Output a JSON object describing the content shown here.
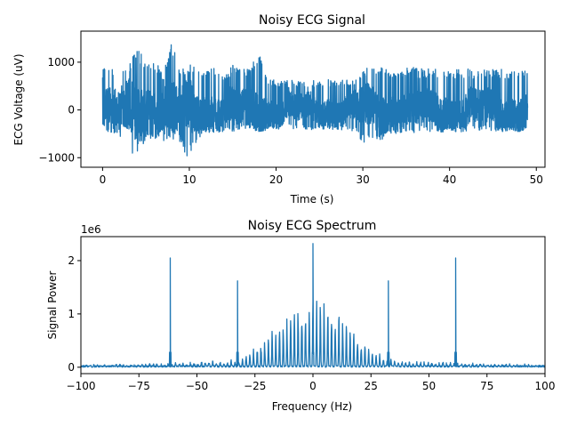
{
  "chart_data": [
    {
      "type": "line",
      "title": "Noisy ECG Signal",
      "xlabel": "Time (s)",
      "ylabel": "ECG Voltage (uV)",
      "xlim": [
        -2.5,
        51
      ],
      "ylim": [
        -1200,
        1650
      ],
      "xticks": [
        0,
        10,
        20,
        30,
        40,
        50
      ],
      "xtick_labels": [
        "0",
        "10",
        "20",
        "30",
        "40",
        "50"
      ],
      "yticks": [
        -1000,
        0,
        1000
      ],
      "ytick_labels": [
        "−1000",
        "0",
        "1000"
      ],
      "color": "#1f77b4",
      "series": [
        {
          "x": [
            0,
            2,
            3,
            4,
            5,
            6,
            7,
            8,
            9,
            10,
            11,
            12,
            13,
            14,
            15,
            16,
            17,
            18,
            19,
            20,
            21,
            22,
            23,
            24,
            25,
            26,
            27,
            28,
            29,
            30,
            31,
            32,
            33,
            34,
            35,
            36,
            37,
            38,
            39,
            40,
            41,
            42,
            43,
            44,
            45,
            46,
            47,
            48,
            49
          ],
          "y_max": [
            900,
            850,
            1000,
            1380,
            1000,
            1100,
            800,
            1550,
            900,
            1000,
            800,
            820,
            900,
            700,
            950,
            850,
            900,
            1200,
            700,
            620,
            620,
            620,
            620,
            620,
            620,
            640,
            640,
            650,
            650,
            900,
            900,
            900,
            880,
            880,
            880,
            900,
            870,
            880,
            870,
            870,
            860,
            860,
            850,
            860,
            850,
            860,
            850,
            850,
            820
          ],
          "y_min": [
            -500,
            -550,
            -1050,
            -900,
            -700,
            -600,
            -650,
            -650,
            -700,
            -1100,
            -600,
            -500,
            -500,
            -450,
            -450,
            -400,
            -400,
            -450,
            -420,
            -400,
            -400,
            -420,
            -400,
            -420,
            -400,
            -420,
            -420,
            -420,
            -440,
            -700,
            -650,
            -650,
            -500,
            -500,
            -480,
            -480,
            -460,
            -460,
            -460,
            -460,
            -460,
            -450,
            -460,
            -450,
            -460,
            -450,
            -450,
            -450,
            -440
          ]
        }
      ]
    },
    {
      "type": "line",
      "title": "Noisy ECG Spectrum",
      "xlabel": "Frequency (Hz)",
      "ylabel": "Signal Power",
      "offset_label": "1e6",
      "xlim": [
        -100,
        100
      ],
      "ylim": [
        -0.12,
        2.45
      ],
      "xticks": [
        -100,
        -75,
        -50,
        -25,
        0,
        25,
        50,
        75,
        100
      ],
      "xtick_labels": [
        "−100",
        "−75",
        "−50",
        "−25",
        "0",
        "25",
        "50",
        "75",
        "100"
      ],
      "yticks": [
        0,
        1,
        2
      ],
      "ytick_labels": [
        "0",
        "1",
        "2"
      ],
      "color": "#1f77b4",
      "series": [
        {
          "peaks_x": [
            -61.5,
            -32.5,
            0,
            32.5,
            61.5
          ],
          "peaks_y": [
            2.05,
            1.62,
            2.32,
            1.62,
            2.05
          ],
          "noise_floor": 0.03,
          "center_envelope_peak": 1.35,
          "center_envelope_width_hz": 45
        }
      ]
    }
  ]
}
